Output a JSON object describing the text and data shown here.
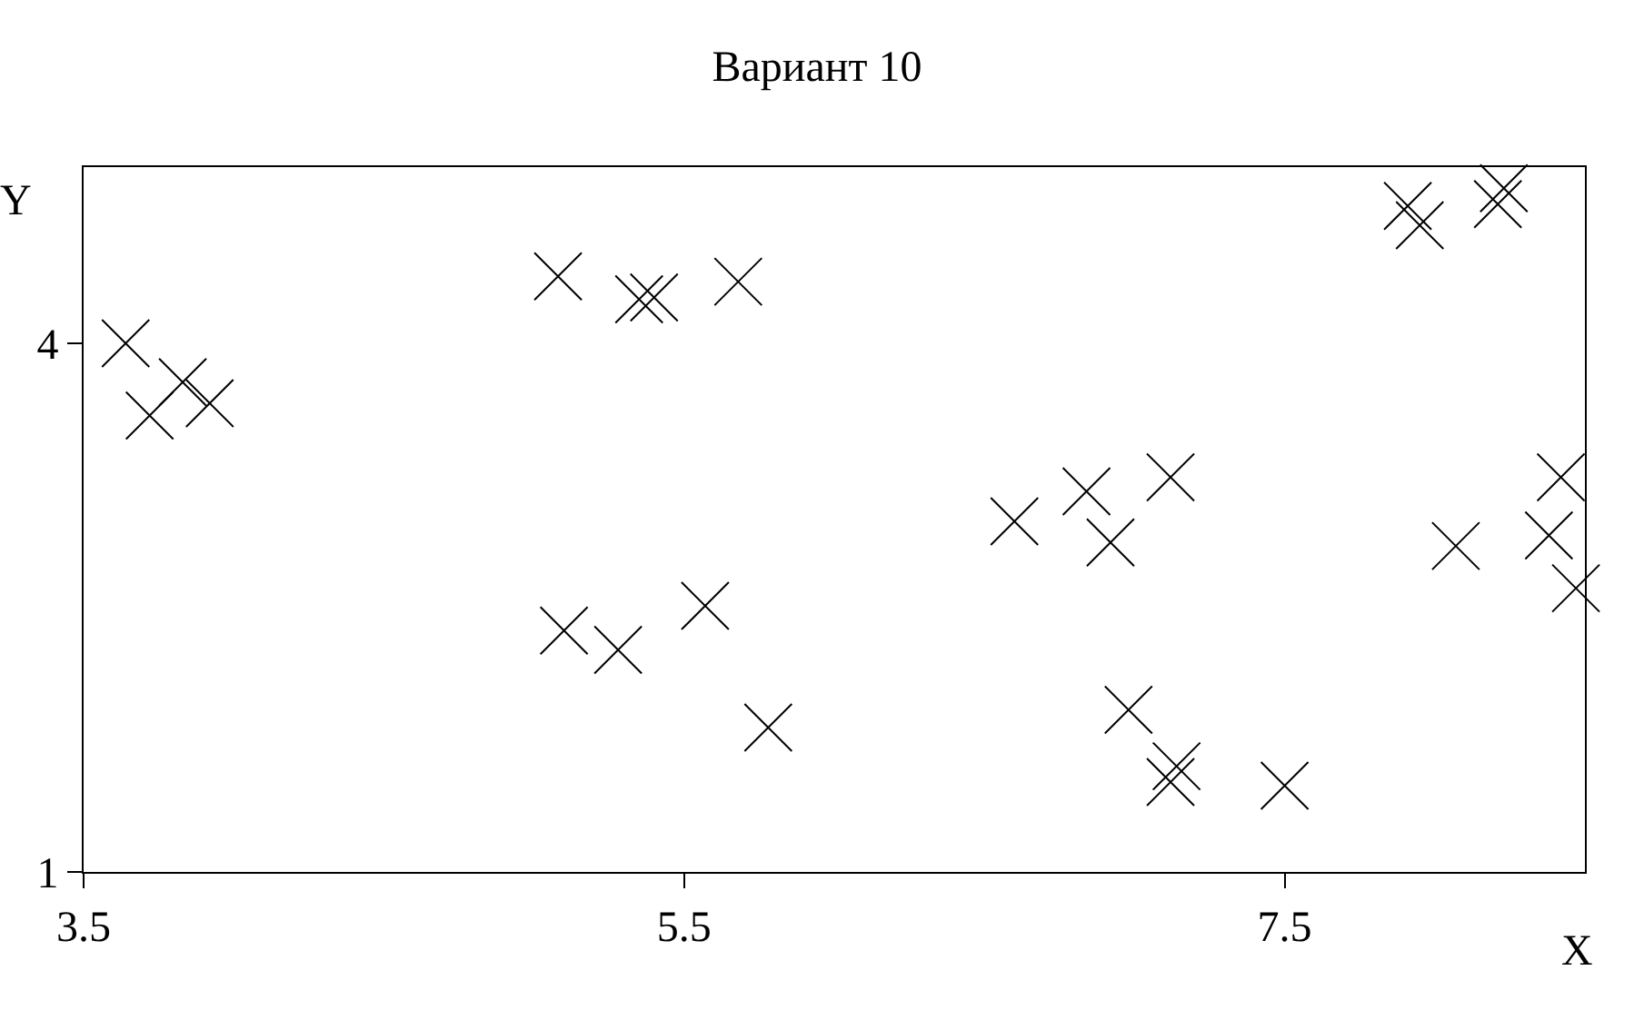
{
  "chart_data": {
    "type": "scatter",
    "title": "Вариант 10",
    "xlabel": "X",
    "ylabel": "Y",
    "x": [
      3.64,
      3.72,
      3.83,
      3.92,
      5.08,
      5.35,
      5.4,
      5.68,
      5.1,
      5.28,
      5.57,
      5.78,
      6.6,
      6.84,
      6.92,
      7.12,
      6.98,
      7.14,
      7.12,
      7.5,
      7.91,
      7.95,
      8.21,
      8.23,
      8.07,
      8.42,
      8.38,
      8.47
    ],
    "values": [
      4.0,
      3.59,
      3.78,
      3.66,
      4.38,
      4.25,
      4.26,
      4.35,
      2.37,
      2.26,
      2.51,
      1.82,
      2.99,
      3.16,
      2.87,
      3.24,
      1.92,
      1.6,
      1.51,
      1.49,
      4.78,
      4.67,
      4.79,
      4.88,
      2.85,
      3.24,
      2.91,
      2.61
    ],
    "color": "#000000",
    "marker": "cross",
    "xlim": [
      3.5,
      8.5
    ],
    "ylim": [
      1,
      5
    ],
    "xticks": [
      3.5,
      5.5,
      7.5
    ],
    "yticks": [
      1,
      4
    ],
    "grid": false,
    "legend": false
  }
}
